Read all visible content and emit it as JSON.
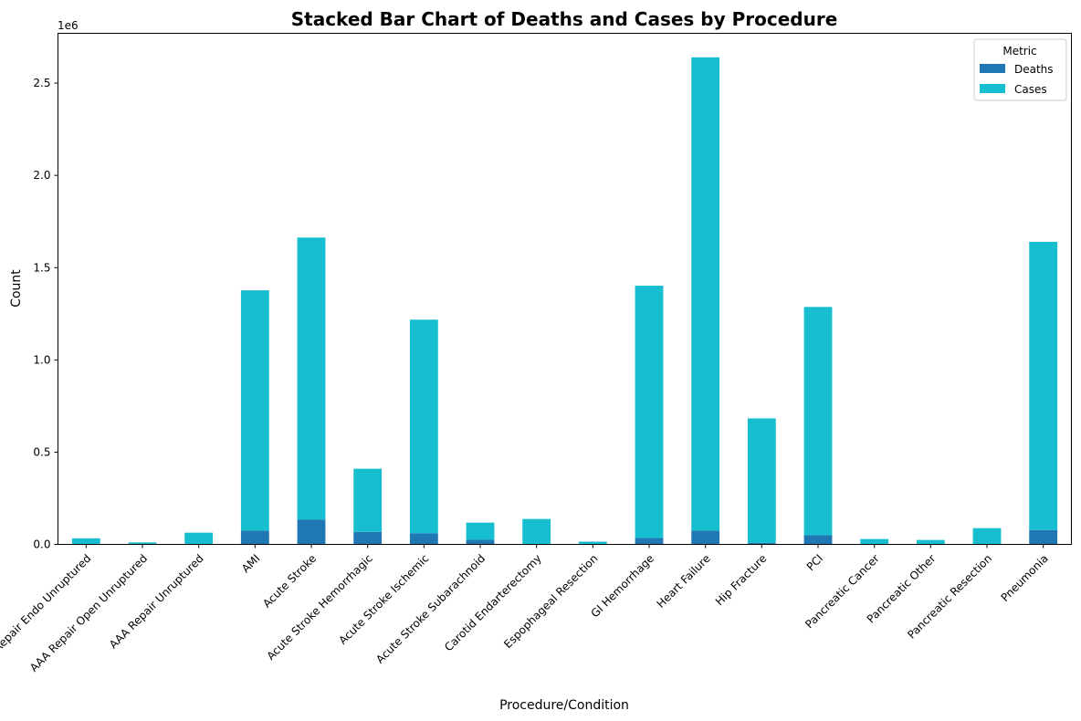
{
  "chart_data": {
    "type": "bar",
    "stacked": true,
    "title": "Stacked Bar Chart of Deaths and Cases by Procedure",
    "xlabel": "Procedure/Condition",
    "ylabel": "Count",
    "y_offset_text": "1e6",
    "ylim": [
      0,
      2770000
    ],
    "yticks": [
      0,
      500000,
      1000000,
      1500000,
      2000000,
      2500000
    ],
    "ytick_labels": [
      "0.0",
      "0.5",
      "1.0",
      "1.5",
      "2.0",
      "2.5"
    ],
    "grid": false,
    "legend": {
      "title": "Metric",
      "position": "top-right"
    },
    "categories": [
      "AAA Repair Endo Unruptured",
      "AAA Repair Open Unruptured",
      "AAA Repair Unruptured",
      "AMI",
      "Acute Stroke",
      "Acute Stroke Hemorrhagic",
      "Acute Stroke Ischemic",
      "Acute Stroke Subarachnoid",
      "Carotid Endarterectomy",
      "Espophageal Resection",
      "GI Hemorrhage",
      "Heart Failure",
      "Hip Fracture",
      "PCI",
      "Pancreatic Cancer",
      "Pancreatic Other",
      "Pancreatic Resection",
      "Pneumonia"
    ],
    "series": [
      {
        "name": "Deaths",
        "color": "#1f77b4",
        "values": [
          1000,
          800,
          1500,
          75000,
          135000,
          68000,
          60000,
          25000,
          2000,
          500,
          35000,
          75000,
          8000,
          50000,
          1000,
          1000,
          1500,
          78000
        ]
      },
      {
        "name": "Cases",
        "color": "#17becf",
        "values": [
          32000,
          10000,
          62000,
          1302000,
          1528000,
          342000,
          1158000,
          93000,
          136000,
          14500,
          1367000,
          2565000,
          675000,
          1237000,
          28000,
          23000,
          86500,
          1562000
        ]
      }
    ]
  }
}
